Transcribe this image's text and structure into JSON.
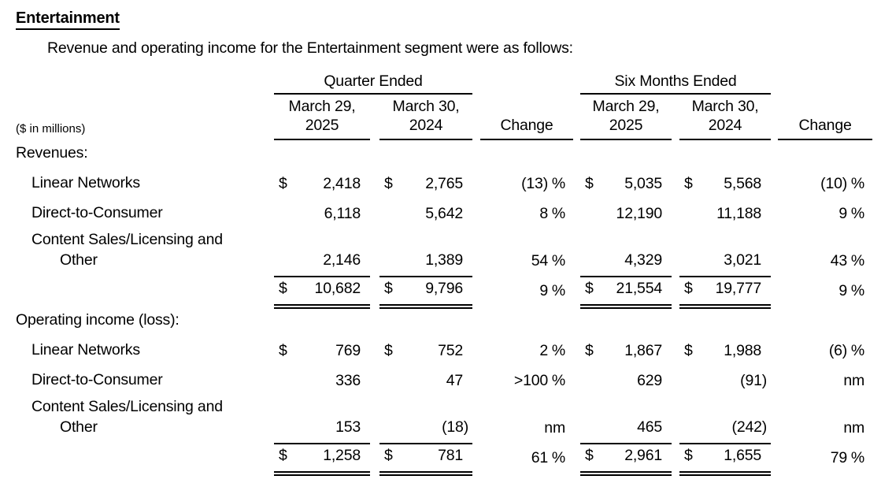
{
  "page": {
    "title": "Entertainment",
    "intro": "Revenue and operating income for the Entertainment segment were as follows:"
  },
  "table": {
    "units_note": "($ in millions)",
    "groups": [
      {
        "label": "Quarter Ended"
      },
      {
        "label": "Six Months Ended"
      }
    ],
    "col_headers": {
      "qe": [
        {
          "l1": "March 29,",
          "l2": "2025"
        },
        {
          "l1": "March 30,",
          "l2": "2024"
        }
      ],
      "sme": [
        {
          "l1": "March 29,",
          "l2": "2025"
        },
        {
          "l1": "March 30,",
          "l2": "2024"
        }
      ],
      "change": "Change"
    },
    "sections": [
      {
        "header": "Revenues:",
        "rows": [
          {
            "label": "Linear Networks",
            "label2": null,
            "dollar": true,
            "q1": "2,418",
            "q2": "2,765",
            "c1": "(13)",
            "c1s": "%",
            "s1": "5,035",
            "s2": "5,568",
            "c2": "(10)",
            "c2s": "%",
            "rule": "none"
          },
          {
            "label": "Direct-to-Consumer",
            "label2": null,
            "dollar": false,
            "q1": "6,118",
            "q2": "5,642",
            "c1": "8",
            "c1s": "%",
            "s1": "12,190",
            "s2": "11,188",
            "c2": "9",
            "c2s": "%",
            "rule": "none"
          },
          {
            "label": "Content Sales/Licensing and",
            "label2": "Other",
            "dollar": false,
            "q1": "2,146",
            "q2": "1,389",
            "c1": "54",
            "c1s": "%",
            "s1": "4,329",
            "s2": "3,021",
            "c2": "43",
            "c2s": "%",
            "rule": "single"
          },
          {
            "label": "",
            "label2": null,
            "dollar": true,
            "q1": "10,682",
            "q2": "9,796",
            "c1": "9",
            "c1s": "%",
            "s1": "21,554",
            "s2": "19,777",
            "c2": "9",
            "c2s": "%",
            "rule": "double"
          }
        ]
      },
      {
        "header": "Operating income (loss):",
        "rows": [
          {
            "label": "Linear Networks",
            "label2": null,
            "dollar": true,
            "q1": "769",
            "q2": "752",
            "c1": "2",
            "c1s": "%",
            "s1": "1,867",
            "s2": "1,988",
            "c2": "(6)",
            "c2s": "%",
            "rule": "none"
          },
          {
            "label": "Direct-to-Consumer",
            "label2": null,
            "dollar": false,
            "q1": "336",
            "q2": "47",
            "c1": ">100",
            "c1s": "%",
            "s1": "629",
            "s2": "(91)",
            "c2": "",
            "c2s": "nm",
            "rule": "none"
          },
          {
            "label": "Content Sales/Licensing and",
            "label2": "Other",
            "dollar": false,
            "q1": "153",
            "q2": "(18)",
            "c1": "",
            "c1s": "nm",
            "s1": "465",
            "s2": "(242)",
            "c2": "",
            "c2s": "nm",
            "rule": "single"
          },
          {
            "label": "",
            "label2": null,
            "dollar": true,
            "q1": "1,258",
            "q2": "781",
            "c1": "61",
            "c1s": "%",
            "s1": "2,961",
            "s2": "1,655",
            "c2": "79",
            "c2s": "%",
            "rule": "double"
          }
        ]
      }
    ]
  }
}
